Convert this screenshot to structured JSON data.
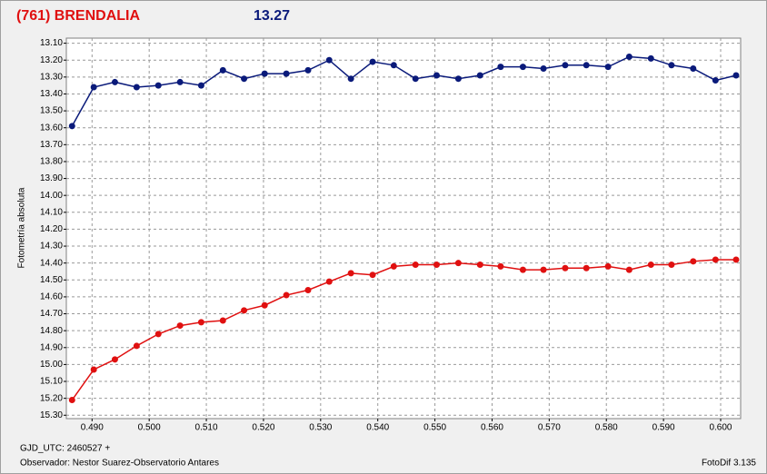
{
  "chart_data": {
    "type": "line",
    "title": "(761) BRENDALIA",
    "subtitle": "13.27",
    "y_label": "Fotometría absoluta",
    "x_label": "GJD_UTC: 2460527 +",
    "observer": "Observador: Nestor Suarez-Observatorio Antares",
    "software": "FotoDif 3.135",
    "y_inverted": true,
    "grid": true,
    "xlim": [
      0.4855,
      0.6035
    ],
    "ylim": [
      13.07,
      15.32
    ],
    "xticks": [
      {
        "value": 0.49,
        "label": "0.490"
      },
      {
        "value": 0.5,
        "label": "0.500"
      },
      {
        "value": 0.51,
        "label": "0.510"
      },
      {
        "value": 0.52,
        "label": "0.520"
      },
      {
        "value": 0.53,
        "label": "0.530"
      },
      {
        "value": 0.54,
        "label": "0.540"
      },
      {
        "value": 0.55,
        "label": "0.550"
      },
      {
        "value": 0.56,
        "label": "0.560"
      },
      {
        "value": 0.57,
        "label": "0.570"
      },
      {
        "value": 0.58,
        "label": "0.580"
      },
      {
        "value": 0.59,
        "label": "0.590"
      },
      {
        "value": 0.6,
        "label": "0.600"
      }
    ],
    "yticks": [
      {
        "value": 13.1,
        "label": "13.10"
      },
      {
        "value": 13.2,
        "label": "13.20"
      },
      {
        "value": 13.3,
        "label": "13.30"
      },
      {
        "value": 13.4,
        "label": "13.40"
      },
      {
        "value": 13.5,
        "label": "13.50"
      },
      {
        "value": 13.6,
        "label": "13.60"
      },
      {
        "value": 13.7,
        "label": "13.70"
      },
      {
        "value": 13.8,
        "label": "13.80"
      },
      {
        "value": 13.9,
        "label": "13.90"
      },
      {
        "value": 14.0,
        "label": "14.00"
      },
      {
        "value": 14.1,
        "label": "14.10"
      },
      {
        "value": 14.2,
        "label": "14.20"
      },
      {
        "value": 14.3,
        "label": "14.30"
      },
      {
        "value": 14.4,
        "label": "14.40"
      },
      {
        "value": 14.5,
        "label": "14.50"
      },
      {
        "value": 14.6,
        "label": "14.60"
      },
      {
        "value": 14.7,
        "label": "14.70"
      },
      {
        "value": 14.8,
        "label": "14.80"
      },
      {
        "value": 14.9,
        "label": "14.90"
      },
      {
        "value": 15.0,
        "label": "15.00"
      },
      {
        "value": 15.1,
        "label": "15.10"
      },
      {
        "value": 15.2,
        "label": "15.20"
      },
      {
        "value": 15.3,
        "label": "15.30"
      }
    ],
    "x": [
      0.4865,
      0.4903,
      0.494,
      0.4978,
      0.5016,
      0.5054,
      0.5091,
      0.5129,
      0.5166,
      0.5202,
      0.524,
      0.5278,
      0.5315,
      0.5353,
      0.5391,
      0.5428,
      0.5466,
      0.5503,
      0.5541,
      0.5579,
      0.5615,
      0.5654,
      0.569,
      0.5728,
      0.5765,
      0.5803,
      0.584,
      0.5878,
      0.5914,
      0.5952,
      0.5991,
      0.6027
    ],
    "series": [
      {
        "color": "#0a1a7a",
        "values": [
          13.59,
          13.36,
          13.33,
          13.36,
          13.35,
          13.33,
          13.35,
          13.26,
          13.31,
          13.28,
          13.28,
          13.26,
          13.2,
          13.31,
          13.21,
          13.23,
          13.31,
          13.29,
          13.31,
          13.29,
          13.24,
          13.24,
          13.25,
          13.23,
          13.23,
          13.24,
          13.18,
          13.19,
          13.23,
          13.25,
          13.32,
          13.29
        ]
      },
      {
        "color": "#e01010",
        "values": [
          15.21,
          15.03,
          14.97,
          14.89,
          14.82,
          14.77,
          14.75,
          14.74,
          14.68,
          14.65,
          14.59,
          14.56,
          14.51,
          14.46,
          14.47,
          14.42,
          14.41,
          14.41,
          14.4,
          14.41,
          14.42,
          14.44,
          14.44,
          14.43,
          14.43,
          14.42,
          14.44,
          14.41,
          14.41,
          14.39,
          14.38,
          14.38
        ]
      }
    ]
  }
}
